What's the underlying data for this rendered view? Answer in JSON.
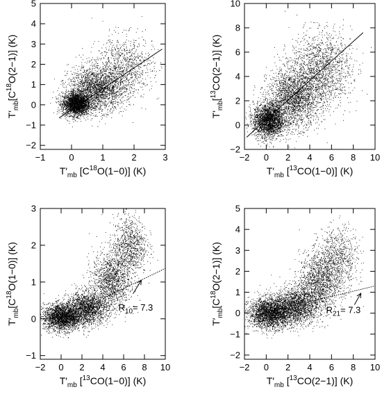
{
  "chart_data": [
    {
      "type": "scatter",
      "title": "",
      "xlabel": "T′mb [C18O(1−0)] (K)",
      "ylabel": "T′mb[C18O(2−1)] (K)",
      "xlabel_parts": {
        "prefix": "T′",
        "sub": "mb",
        "main": " [C",
        "sup": "18",
        "rest": "O(1−0)] (K)"
      },
      "ylabel_parts": {
        "prefix": "T′",
        "sub": "mb",
        "main": "[C",
        "sup": "18",
        "rest": "O(2−1)] (K)"
      },
      "xlim": [
        -1,
        3
      ],
      "ylim": [
        -2.2,
        5
      ],
      "xticks": [
        -1,
        0,
        1,
        2,
        3
      ],
      "yticks": [
        -2,
        -1,
        0,
        1,
        2,
        3,
        4,
        5
      ],
      "fit_line": {
        "x": [
          -0.4,
          2.9
        ],
        "y": [
          -0.65,
          2.75
        ],
        "style": "solid"
      },
      "scatter_clusters": [
        {
          "x": 0.15,
          "y": 0.05,
          "sx": 0.22,
          "sy": 0.28,
          "n": 2600
        },
        {
          "x": 0.8,
          "y": 0.8,
          "sx": 0.45,
          "sy": 0.55,
          "n": 2200
        },
        {
          "x": 1.7,
          "y": 1.9,
          "sx": 0.45,
          "sy": 0.75,
          "n": 900
        }
      ],
      "annotation": null
    },
    {
      "type": "scatter",
      "title": "",
      "xlabel": "T′mb [13CO(1−0)] (K)",
      "ylabel": "T′mb[13CO(2−1)] (K)",
      "xlabel_parts": {
        "prefix": "T′",
        "sub": "mb",
        "main": " [",
        "sup": "13",
        "rest": "CO(1−0)] (K)"
      },
      "ylabel_parts": {
        "prefix": "T′",
        "sub": "mb",
        "main": "[",
        "sup": "13",
        "rest": "CO(2−1)] (K)"
      },
      "xlim": [
        -2,
        10
      ],
      "ylim": [
        -2,
        10
      ],
      "xticks": [
        -2,
        0,
        2,
        4,
        6,
        8,
        10
      ],
      "yticks": [
        -2,
        0,
        2,
        4,
        6,
        8,
        10
      ],
      "fit_line": {
        "x": [
          -1.8,
          8.9
        ],
        "y": [
          -1.0,
          7.6
        ],
        "style": "solid"
      },
      "scatter_clusters": [
        {
          "x": 0.2,
          "y": 0.4,
          "sx": 0.7,
          "sy": 0.7,
          "n": 2400
        },
        {
          "x": 2.5,
          "y": 2.2,
          "sx": 1.2,
          "sy": 1.2,
          "n": 2200
        },
        {
          "x": 5.0,
          "y": 4.6,
          "sx": 1.4,
          "sy": 1.5,
          "n": 1600
        }
      ],
      "annotation": null
    },
    {
      "type": "scatter",
      "title": "",
      "xlabel": "T′mb [13CO(1−0)] (K)",
      "ylabel": "T′mb[C18O(1−0)] (K)",
      "xlabel_parts": {
        "prefix": "T′",
        "sub": "mb",
        "main": " [",
        "sup": "13",
        "rest": "CO(1−0)] (K)"
      },
      "ylabel_parts": {
        "prefix": "T′",
        "sub": "mb",
        "main": "[C",
        "sup": "18",
        "rest": "O(1−0)] (K)"
      },
      "xlim": [
        -2,
        10
      ],
      "ylim": [
        -1.1,
        3
      ],
      "xticks": [
        -2,
        0,
        2,
        4,
        6,
        8,
        10
      ],
      "yticks": [
        -1,
        0,
        1,
        2,
        3
      ],
      "fit_line": {
        "x": [
          4.0,
          10.0
        ],
        "y": [
          0.55,
          1.37
        ],
        "style": "dotted"
      },
      "scatter_clusters": [
        {
          "x": 0.1,
          "y": 0.05,
          "sx": 0.9,
          "sy": 0.18,
          "n": 2400
        },
        {
          "x": 2.5,
          "y": 0.3,
          "sx": 1.0,
          "sy": 0.22,
          "n": 1800
        },
        {
          "x": 4.8,
          "y": 1.05,
          "sx": 0.9,
          "sy": 0.4,
          "n": 1400
        },
        {
          "x": 6.6,
          "y": 2.0,
          "sx": 0.8,
          "sy": 0.4,
          "n": 900
        }
      ],
      "annotation": {
        "label": "R",
        "sub": "10",
        "value": "=  7.3",
        "text_at": [
          5.5,
          0.22
        ],
        "arrow_from": [
          6.9,
          0.68
        ],
        "arrow_to": [
          7.7,
          1.05
        ]
      }
    },
    {
      "type": "scatter",
      "title": "",
      "xlabel": "T′mb [13CO(2−1)] (K)",
      "ylabel": "T′mb[C18O(2−1)] (K)",
      "xlabel_parts": {
        "prefix": "T′",
        "sub": "mb",
        "main": " [",
        "sup": "13",
        "rest": "CO(2−1)] (K)"
      },
      "ylabel_parts": {
        "prefix": "T′",
        "sub": "mb",
        "main": "[C",
        "sup": "18",
        "rest": "O(2−1)] (K)"
      },
      "xlim": [
        -2,
        10
      ],
      "ylim": [
        -2.2,
        5
      ],
      "xticks": [
        -2,
        0,
        2,
        4,
        6,
        8,
        10
      ],
      "yticks": [
        -2,
        -1,
        0,
        1,
        2,
        3,
        4,
        5
      ],
      "fit_line": {
        "x": [
          4.0,
          10.0
        ],
        "y": [
          0.55,
          1.3
        ],
        "style": "dotted"
      },
      "scatter_clusters": [
        {
          "x": 0.4,
          "y": 0.0,
          "sx": 1.0,
          "sy": 0.35,
          "n": 2600
        },
        {
          "x": 2.8,
          "y": 0.4,
          "sx": 1.0,
          "sy": 0.45,
          "n": 1800
        },
        {
          "x": 4.8,
          "y": 1.5,
          "sx": 0.9,
          "sy": 0.7,
          "n": 1300
        },
        {
          "x": 6.6,
          "y": 2.6,
          "sx": 0.9,
          "sy": 0.75,
          "n": 800
        }
      ],
      "annotation": {
        "label": "R",
        "sub": "21",
        "value": "=  7.3",
        "text_at": [
          5.5,
          0.0
        ],
        "arrow_from": [
          8.1,
          0.4
        ],
        "arrow_to": [
          8.7,
          0.95
        ]
      }
    }
  ]
}
